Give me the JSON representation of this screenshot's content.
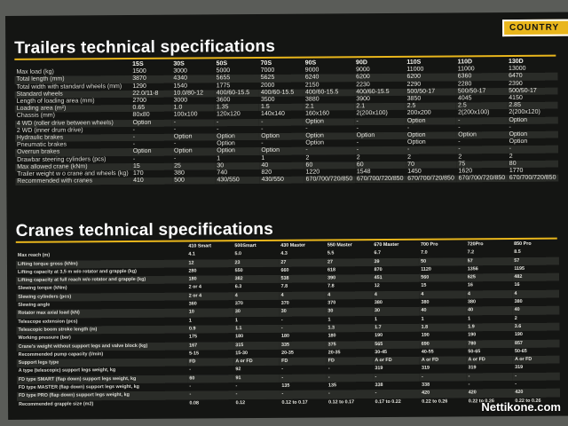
{
  "brand": "COUNTRY",
  "watermark": "Nettikone.com",
  "trailers": {
    "title": "Trailers technical specifications",
    "headers": [
      "",
      "15S",
      "30S",
      "50S",
      "70S",
      "90S",
      "90D",
      "110S",
      "110D",
      "130D"
    ],
    "rows": [
      [
        "Max load (kg)",
        "1500",
        "3000",
        "5000",
        "7000",
        "9000",
        "9000",
        "11000",
        "11000",
        "13000"
      ],
      [
        "Total length (mm)",
        "3870",
        "4340",
        "5655",
        "5625",
        "6240",
        "6200",
        "6200",
        "6360",
        "6470"
      ],
      [
        "Total width with standard wheels (mm)",
        "1290",
        "1540",
        "1775",
        "2000",
        "2150",
        "2230",
        "2290",
        "2280",
        "2390"
      ],
      [
        "Standard wheels",
        "22.0/11-8",
        "10.0/80-12",
        "400/60-15.5",
        "400/60-15.5",
        "400/60-15.5",
        "400/60-15.5",
        "500/50-17",
        "500/50-17",
        "500/50-17"
      ],
      [
        "Length of loading area (mm)",
        "2700",
        "3000",
        "3600",
        "3500",
        "3880",
        "3900",
        "3850",
        "4045",
        "4150"
      ],
      [
        "Loading area (m²)",
        "0.65",
        "1.0",
        "1.35",
        "1.5",
        "2.1",
        "2.1",
        "2.5",
        "2.5",
        "2.85"
      ],
      [
        "Chassis (mm)",
        "80x80",
        "100x100",
        "120x120",
        "140x140",
        "160x160",
        "2(200x100)",
        "200x200",
        "2(200x100)",
        "2(200x120)"
      ],
      [
        "4 WD (roller drive between wheels)",
        "Option",
        "-",
        "-",
        "-",
        "Option",
        "-",
        "Option",
        "-",
        "Option"
      ],
      [
        "2 WD (inner drum drive)",
        "-",
        "-",
        "-",
        "-",
        "-",
        "-",
        "-",
        "-",
        "-"
      ],
      [
        "Hydraulic brakes",
        "-",
        "Option",
        "Option",
        "Option",
        "Option",
        "Option",
        "Option",
        "Option",
        "Option"
      ],
      [
        "Pneumatic brakes",
        "-",
        "-",
        "Option",
        "-",
        "Option",
        "-",
        "Option",
        "-",
        "Option"
      ],
      [
        "Overrun brakes",
        "Option",
        "Option",
        "Option",
        "Option",
        "-",
        "-",
        "-",
        "-",
        "-"
      ],
      [
        "Drawbar steering cylinders (pcs)",
        "-",
        "-",
        "1",
        "1",
        "2",
        "2",
        "2",
        "2",
        "2"
      ],
      [
        "Max allowed crane (kNm)",
        "15",
        "25",
        "30",
        "40",
        "60",
        "60",
        "70",
        "75",
        "80"
      ],
      [
        "Trailer weight w o crane and wheels (kg)",
        "170",
        "380",
        "740",
        "820",
        "1220",
        "1548",
        "1450",
        "1620",
        "1770"
      ],
      [
        "Recommended with cranes",
        "410",
        "500",
        "430/550",
        "430/550",
        "670/700/720/850",
        "670/700/720/850",
        "670/700/720/850",
        "670/700/720/850",
        "670/700/720/850"
      ]
    ]
  },
  "cranes": {
    "title": "Cranes technical specifications",
    "headers": [
      "",
      "410 Smart",
      "500Smart",
      "430 Master",
      "550 Master",
      "670 Master",
      "700 Pro",
      "720Pro",
      "850 Pro"
    ],
    "rows": [
      [
        "Max reach (m)",
        "4.1",
        "5.0",
        "4.3",
        "5.5",
        "6.7",
        "7.0",
        "7.2",
        "8.5"
      ],
      [
        "Lifting torque gross (kNm)",
        "12",
        "23",
        "27",
        "27",
        "39",
        "50",
        "57",
        "57"
      ],
      [
        "Lifting capacity at 3,5 m w/o rotator and grapple (kg)",
        "280",
        "550",
        "660",
        "618",
        "870",
        "1120",
        "1356",
        "1195"
      ],
      [
        "Lifting capacity at full reach w/o rotator and grapple (kg)",
        "180",
        "382",
        "538",
        "390",
        "451",
        "560",
        "625",
        "482"
      ],
      [
        "Slewing torque (kNm)",
        "2 or 4",
        "6.3",
        "7.8",
        "7.8",
        "12",
        "15",
        "16",
        "16"
      ],
      [
        "Slewing cylinders (pcs)",
        "2 or 4",
        "4",
        "4",
        "4",
        "4",
        "4",
        "4",
        "4"
      ],
      [
        "Slewing angle",
        "360",
        "370",
        "370",
        "370",
        "380",
        "380",
        "380",
        "380"
      ],
      [
        "Rotator max axial load (kN)",
        "10",
        "30",
        "30",
        "30",
        "30",
        "40",
        "40",
        "40"
      ],
      [
        "Telescope extension (pcs)",
        "1",
        "1",
        "-",
        "1",
        "1",
        "1",
        "1",
        "2"
      ],
      [
        "Telescopic boom stroke length (m)",
        "0.9",
        "1.1",
        "-",
        "1.3",
        "1.7",
        "1.8",
        "1.9",
        "3.6"
      ],
      [
        "Working pressure (bar)",
        "175",
        "180",
        "180",
        "180",
        "190",
        "190",
        "190",
        "190"
      ],
      [
        "Crane's weight without support legs and valve block (kg)",
        "167",
        "315",
        "335",
        "375",
        "565",
        "690",
        "780",
        "857"
      ],
      [
        "Recommended pump capacity (l/min)",
        "5-15",
        "15-30",
        "20-35",
        "20-35",
        "30-45",
        "40-55",
        "50-65",
        "50-65"
      ],
      [
        "Support legs type",
        "FD",
        "A or FD",
        "FD",
        "FD",
        "A or FD",
        "A or FD",
        "A or FD",
        "A or FD"
      ],
      [
        "A type (telescopic) support legs weight, kg",
        "-",
        "92",
        "-",
        "-",
        "319",
        "319",
        "319",
        "319"
      ],
      [
        "FD type SMART (flap down) support legs weight, kg",
        "60",
        "91",
        "-",
        "-",
        "-",
        "-",
        "-",
        "-"
      ],
      [
        "FD type MASTER (flap down) support legs weight, kg",
        "-",
        "-",
        "135",
        "135",
        "338",
        "338",
        "-",
        "-"
      ],
      [
        "FD type PRO (flap down) support legs weight, kg",
        "-",
        "-",
        "-",
        "-",
        "-",
        "420",
        "420",
        "420"
      ],
      [
        "Recommended grapple size (m2)",
        "0.08",
        "0.12",
        "0.12 to 0.17",
        "0.12 to 0.17",
        "0.17 to 0.22",
        "0.22 to 0.26",
        "0.22 to 0.26",
        "0.22 to 0.26"
      ]
    ]
  }
}
